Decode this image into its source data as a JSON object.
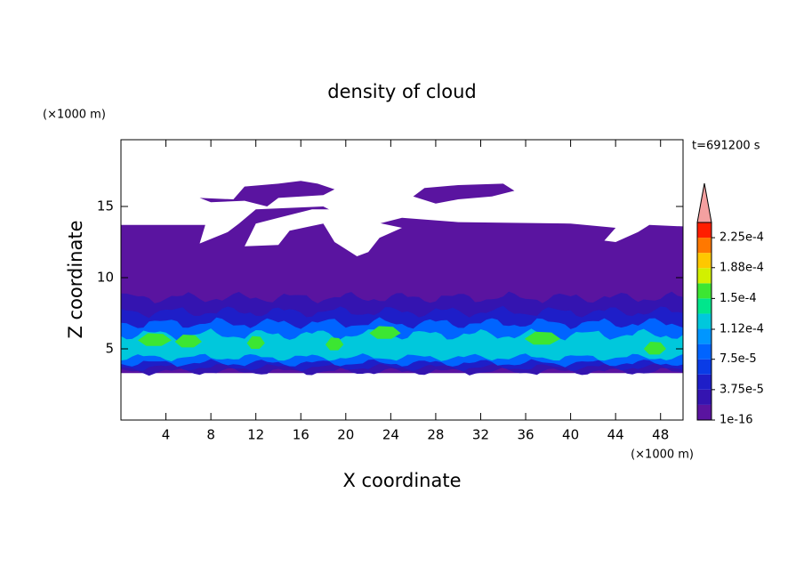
{
  "chart_data": {
    "type": "contour",
    "title": "density of cloud",
    "x_label": "X coordinate",
    "y_label": "Z coordinate",
    "x_unit": "(×1000 m)",
    "y_unit": "(×1000 m)",
    "time_label": "t=691200 s",
    "xlim": [
      0,
      50
    ],
    "xticks": [
      4,
      8,
      12,
      16,
      20,
      24,
      28,
      32,
      36,
      40,
      44,
      48
    ],
    "ylim": [
      0,
      20
    ],
    "yticks": [
      5,
      10,
      15
    ],
    "colorbar": {
      "clim": [
        0,
        0.00024375
      ],
      "ticks": [
        {
          "value": 1e-16,
          "label": "1e-16"
        },
        {
          "value": 3.75e-05,
          "label": "3.75e-5"
        },
        {
          "value": 7.5e-05,
          "label": "7.5e-5"
        },
        {
          "value": 0.000112,
          "label": "1.12e-4"
        },
        {
          "value": 0.00015,
          "label": "1.5e-4"
        },
        {
          "value": 0.000188,
          "label": "1.88e-4"
        },
        {
          "value": 0.000225,
          "label": "2.25e-4"
        }
      ],
      "colors": [
        "#5a14a0",
        "#3414b0",
        "#1e1ec8",
        "#0a3ce6",
        "#0064ff",
        "#0096ff",
        "#00c8dc",
        "#00e68c",
        "#3ce632",
        "#d2f000",
        "#ffc800",
        "#ff7800",
        "#ff1e00"
      ],
      "extend_color": "#f4a0a0"
    }
  }
}
